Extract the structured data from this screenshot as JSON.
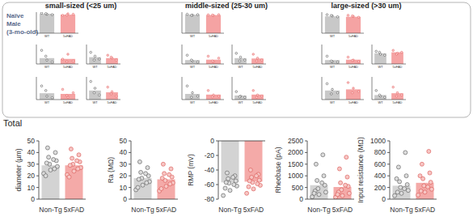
{
  "panel": {
    "label": [
      "Naïve",
      "Male",
      "(3-mo-old)"
    ],
    "groups": [
      {
        "title": "small-sized (<25 um)",
        "charts": [
          {
            "type": "bar",
            "categories": [
              "WT",
              "5xFAD"
            ],
            "values": [
              92,
              88
            ],
            "points": [
              [
                95,
                90,
                88,
                93
              ],
              [
                85,
                92,
                90,
                86
              ]
            ],
            "colors": [
              "#c8c8c8",
              "#f5a3a3"
            ],
            "ylim": [
              0,
              100
            ],
            "tick_labels": false
          },
          {
            "type": "bar",
            "categories": [
              "WT",
              "5xFAD"
            ],
            "values": [
              30,
              26
            ],
            "points": [
              [
                70,
                20,
                10,
                40
              ],
              [
                25,
                50,
                15,
                12
              ]
            ],
            "colors": [
              "#c8c8c8",
              "#f5a3a3"
            ],
            "ylim": [
              0,
              100
            ],
            "tick_labels": false
          },
          {
            "type": "bar",
            "categories": [
              "WT",
              "5xFAD"
            ],
            "values": [
              28,
              25
            ],
            "points": [
              [
                60,
                15,
                8,
                40
              ],
              [
                45,
                10,
                30,
                18
              ]
            ],
            "colors": [
              "#c8c8c8",
              "#f5a3a3"
            ],
            "ylim": [
              0,
              100
            ],
            "tick_labels": false
          },
          {
            "type": "bar",
            "categories": [
              "WT",
              "5xFAD"
            ],
            "values": [
              35,
              30
            ],
            "points": [
              [
                60,
                40,
                25,
                20
              ],
              [
                45,
                30,
                20,
                35
              ]
            ],
            "colors": [
              "#c8c8c8",
              "#f5a3a3"
            ],
            "ylim": [
              0,
              100
            ],
            "tick_labels": false
          },
          {
            "type": "bar",
            "categories": [
              "WT",
              "5xFAD"
            ],
            "values": [
              40,
              32
            ],
            "points": [
              [
                80,
                50,
                20,
                30
              ],
              [
                55,
                35,
                15,
                25
              ]
            ],
            "colors": [
              "#c8c8c8",
              "#f5a3a3"
            ],
            "ylim": [
              0,
              100
            ],
            "tick_labels": false
          }
        ]
      },
      {
        "title": "middle-sized (25-30 um)",
        "charts": [
          {
            "type": "bar",
            "categories": [
              "WT",
              "5xFAD"
            ],
            "values": [
              88,
              86
            ],
            "points": [
              [
                90,
                86,
                88,
                85
              ],
              [
                87,
                84,
                88,
                86
              ]
            ],
            "colors": [
              "#c8c8c8",
              "#f5a3a3"
            ],
            "ylim": [
              0,
              100
            ],
            "tick_labels": false
          },
          {
            "type": "bar",
            "categories": [
              "WT",
              "5xFAD"
            ],
            "values": [
              20,
              22
            ],
            "points": [
              [
                45,
                15,
                10,
                20
              ],
              [
                40,
                12,
                30,
                15
              ]
            ],
            "colors": [
              "#c8c8c8",
              "#f5a3a3"
            ],
            "ylim": [
              0,
              100
            ],
            "tick_labels": false
          },
          {
            "type": "bar",
            "categories": [
              "WT",
              "5xFAD"
            ],
            "values": [
              25,
              22
            ],
            "points": [
              [
                60,
                30,
                15,
                10
              ],
              [
                40,
                20,
                15,
                12
              ]
            ],
            "colors": [
              "#c8c8c8",
              "#f5a3a3"
            ],
            "ylim": [
              0,
              100
            ],
            "tick_labels": false
          },
          {
            "type": "bar",
            "categories": [
              "WT",
              "5xFAD"
            ],
            "values": [
              30,
              28
            ],
            "points": [
              [
                55,
                35,
                20,
                15
              ],
              [
                50,
                30,
                20,
                15
              ]
            ],
            "colors": [
              "#c8c8c8",
              "#f5a3a3"
            ],
            "ylim": [
              0,
              100
            ],
            "tick_labels": false
          },
          {
            "type": "bar",
            "categories": [
              "WT",
              "5xFAD"
            ],
            "values": [
              18,
              22
            ],
            "points": [
              [
                35,
                15,
                10,
                12
              ],
              [
                40,
                20,
                15,
                10
              ]
            ],
            "colors": [
              "#c8c8c8",
              "#f5a3a3"
            ],
            "ylim": [
              0,
              100
            ],
            "tick_labels": false
          }
        ]
      },
      {
        "title": "large-sized (>30 um)",
        "charts": [
          {
            "type": "bar",
            "categories": [
              "WT",
              "5xFAD"
            ],
            "values": [
              80,
              78
            ],
            "points": [
              [
                88,
                82,
                78,
                84
              ],
              [
                85,
                80,
                76,
                82
              ]
            ],
            "colors": [
              "#c8c8c8",
              "#f5a3a3"
            ],
            "ylim": [
              0,
              100
            ],
            "tick_labels": false
          },
          {
            "type": "bar",
            "categories": [
              "WT",
              "5xFAD"
            ],
            "values": [
              20,
              22
            ],
            "points": [
              [
                40,
                12,
                10,
                15
              ],
              [
                35,
                20,
                12,
                18
              ]
            ],
            "colors": [
              "#c8c8c8",
              "#f5a3a3"
            ],
            "ylim": [
              0,
              100
            ],
            "tick_labels": false
          },
          {
            "type": "bar",
            "categories": [
              "WT",
              "5xFAD"
            ],
            "values": [
              40,
              45
            ],
            "points": [
              [
                70,
                45,
                30,
                25
              ],
              [
                75,
                50,
                35,
                30
              ]
            ],
            "colors": [
              "#c8c8c8",
              "#f5a3a3"
            ],
            "ylim": [
              0,
              100
            ],
            "tick_labels": false
          },
          {
            "type": "bar",
            "categories": [
              "WT",
              "5xFAD"
            ],
            "values": [
              55,
              60
            ],
            "points": [
              [
                65,
                50,
                45,
                60
              ],
              [
                70,
                55,
                60,
                50
              ]
            ],
            "colors": [
              "#c8c8c8",
              "#f5a3a3"
            ],
            "ylim": [
              0,
              100
            ],
            "tick_labels": false
          },
          {
            "type": "bar",
            "categories": [
              "WT",
              "5xFAD"
            ],
            "values": [
              20,
              28
            ],
            "points": [
              [
                40,
                15,
                10,
                20
              ],
              [
                55,
                30,
                20,
                15
              ]
            ],
            "colors": [
              "#c8c8c8",
              "#f5a3a3"
            ],
            "ylim": [
              0,
              100
            ],
            "tick_labels": false
          }
        ]
      }
    ]
  },
  "section_title": "Total",
  "chart_data": [
    {
      "type": "bar",
      "y_label": "diameter (µm)",
      "categories": [
        "Non-Tg",
        "5xFAD"
      ],
      "values": [
        29,
        29
      ],
      "colors": [
        "#d3d3d3",
        "#f4aaa8"
      ],
      "points": [
        [
          22,
          25,
          28,
          30,
          33,
          36,
          40,
          44,
          26,
          31,
          34,
          20
        ],
        [
          21,
          24,
          27,
          30,
          32,
          35,
          38,
          43,
          26,
          29,
          33,
          19
        ]
      ],
      "ylim": [
        0,
        50
      ],
      "yticks": [
        0,
        10,
        20,
        30,
        40,
        50
      ]
    },
    {
      "type": "bar",
      "y_label": "Ra (MΩ)",
      "categories": [
        "Non-Tg",
        "5xFAD"
      ],
      "values": [
        18,
        17
      ],
      "colors": [
        "#d3d3d3",
        "#f4aaa8"
      ],
      "points": [
        [
          8,
          12,
          15,
          18,
          20,
          23,
          27,
          32,
          14,
          17,
          22,
          10
        ],
        [
          7,
          11,
          14,
          16,
          19,
          22,
          26,
          30,
          13,
          18,
          21,
          9
        ]
      ],
      "ylim": [
        0,
        50
      ],
      "yticks": [
        0,
        10,
        20,
        30,
        40,
        50
      ]
    },
    {
      "type": "bar",
      "y_label": "RMP (mV)",
      "categories": [
        "Non-Tg",
        "5xFAD"
      ],
      "values": [
        -57,
        -56
      ],
      "colors": [
        "#d3d3d3",
        "#f4aaa8"
      ],
      "points": [
        [
          -75,
          -68,
          -62,
          -58,
          -55,
          -52,
          -48,
          -44,
          -60,
          -57,
          -50,
          -65
        ],
        [
          -72,
          -66,
          -61,
          -57,
          -54,
          -50,
          -46,
          -40,
          -59,
          -55,
          -48,
          -63
        ]
      ],
      "ylim": [
        -80,
        0
      ],
      "yticks": [
        -80,
        -60,
        -40,
        -20,
        0
      ]
    },
    {
      "type": "bar",
      "y_label": "Rheobase (pA)",
      "categories": [
        "Non-Tg",
        "5xFAD"
      ],
      "values": [
        600,
        520
      ],
      "colors": [
        "#d3d3d3",
        "#f4aaa8"
      ],
      "points": [
        [
          100,
          200,
          300,
          450,
          600,
          800,
          1000,
          1500,
          1900,
          350,
          700,
          250
        ],
        [
          80,
          150,
          250,
          400,
          550,
          700,
          950,
          1300,
          1800,
          300,
          600,
          200
        ]
      ],
      "ylim": [
        0,
        2500
      ],
      "yticks": [
        0,
        500,
        1000,
        1500,
        2000,
        2500
      ]
    },
    {
      "type": "bar",
      "y_label": "Input resistance (MΩ)",
      "categories": [
        "Non-Tg",
        "5xFAD"
      ],
      "values": [
        230,
        280
      ],
      "colors": [
        "#d3d3d3",
        "#f4aaa8"
      ],
      "points": [
        [
          60,
          100,
          150,
          200,
          250,
          300,
          400,
          550,
          800,
          120,
          180,
          350
        ],
        [
          70,
          120,
          170,
          230,
          290,
          350,
          450,
          600,
          820,
          140,
          210,
          400
        ]
      ],
      "ylim": [
        0,
        1000
      ],
      "yticks": [
        0,
        200,
        400,
        600,
        800,
        1000
      ]
    }
  ]
}
